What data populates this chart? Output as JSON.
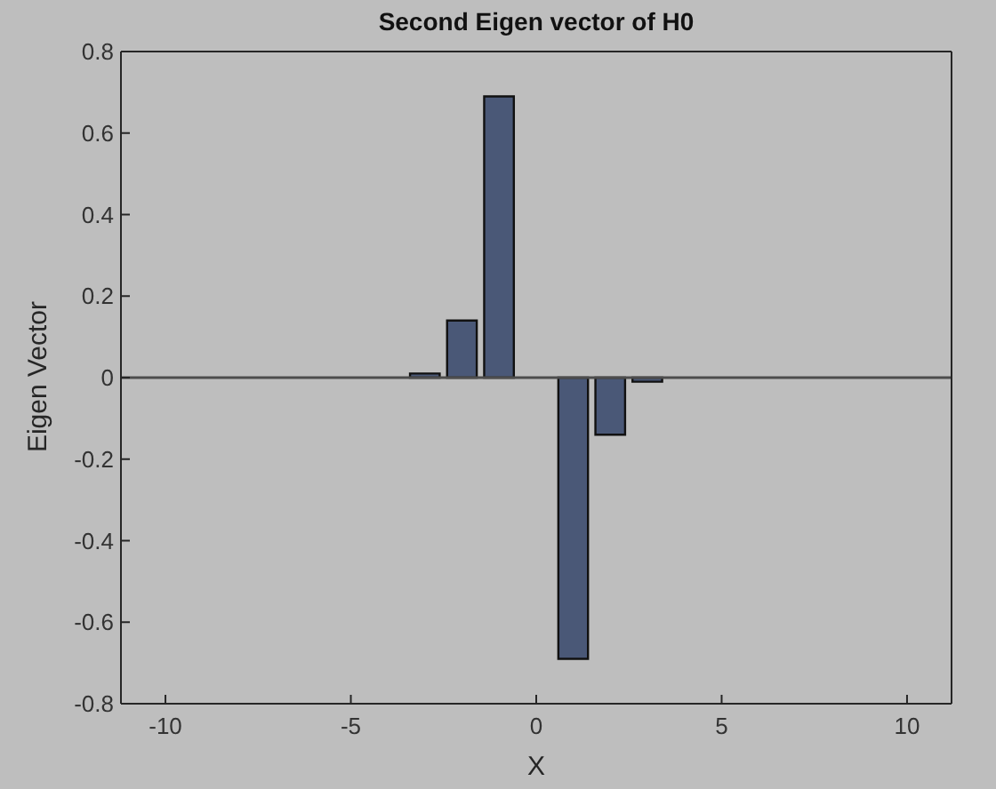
{
  "chart_data": {
    "type": "bar",
    "title": "Second Eigen vector of H0",
    "xlabel": "X",
    "ylabel": "Eigen Vector",
    "x": [
      -10,
      -9,
      -8,
      -7,
      -6,
      -5,
      -4,
      -3,
      -2,
      -1,
      0,
      1,
      2,
      3,
      4,
      5,
      6,
      7,
      8,
      9,
      10
    ],
    "values": [
      0,
      0,
      0,
      0,
      0,
      0,
      0,
      0.01,
      0.14,
      0.69,
      0,
      -0.69,
      -0.14,
      -0.01,
      0,
      0,
      0,
      0,
      0,
      0,
      0
    ],
    "color": "#4a5877",
    "xlim": [
      -11.2,
      11.2
    ],
    "xticks": [
      -10,
      -5,
      0,
      5,
      10
    ],
    "ylim": [
      -0.8,
      0.8
    ],
    "yticks": [
      -0.8,
      -0.6,
      -0.4,
      -0.2,
      0,
      0.2,
      0.4,
      0.6,
      0.8
    ],
    "ref_lines": [
      {
        "axis": "y",
        "value": 0,
        "color": "#4d4d4d"
      }
    ]
  }
}
